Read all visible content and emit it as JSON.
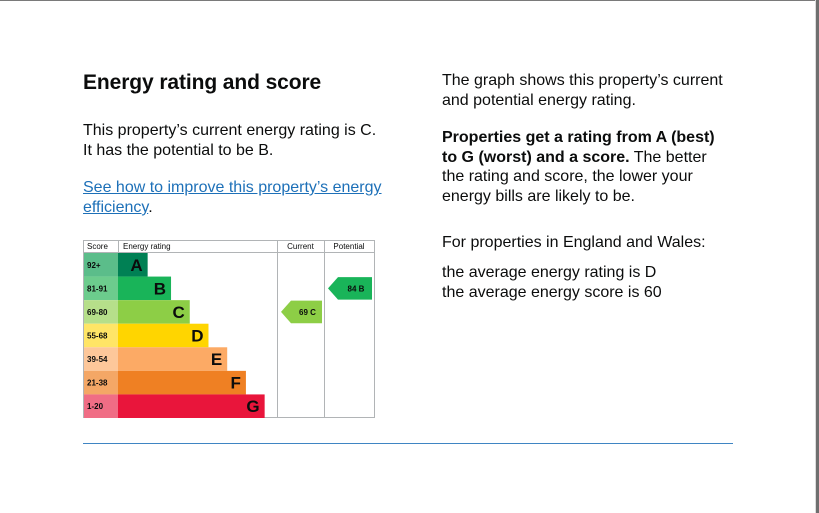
{
  "heading": "Energy rating and score",
  "summary": "This property’s current energy rating is C. It has the potential to be B.",
  "improve_link": "See how to improve this property’s energy efficiency",
  "improve_link_suffix": ".",
  "right": {
    "p1": "The graph shows this property’s current and potential energy rating.",
    "p2_bold": "Properties get a rating from A (best) to G (worst) and a score.",
    "p2_rest": " The better the rating and score, the lower your energy bills are likely to be.",
    "p3": "For properties in England and Wales:",
    "p4": "the average energy rating is D",
    "p5": "the average energy score is 60"
  },
  "chart_data": {
    "type": "table",
    "headers": {
      "score": "Score",
      "rating": "Energy rating",
      "current": "Current",
      "potential": "Potential"
    },
    "bands": [
      {
        "letter": "A",
        "range": "92+",
        "color": "#008054",
        "score_bg": "#5bbd8a",
        "width": 0.19
      },
      {
        "letter": "B",
        "range": "81-91",
        "color": "#19b459",
        "score_bg": "#6ccc8d",
        "width": 0.34
      },
      {
        "letter": "C",
        "range": "69-80",
        "color": "#8dce46",
        "score_bg": "#b6df8a",
        "width": 0.46
      },
      {
        "letter": "D",
        "range": "55-68",
        "color": "#ffd500",
        "score_bg": "#ffe566",
        "width": 0.58
      },
      {
        "letter": "E",
        "range": "39-54",
        "color": "#fcaa65",
        "score_bg": "#fdc79a",
        "width": 0.7
      },
      {
        "letter": "F",
        "range": "21-38",
        "color": "#ef8023",
        "score_bg": "#f4a766",
        "width": 0.82
      },
      {
        "letter": "G",
        "range": "1-20",
        "color": "#e9153b",
        "score_bg": "#f06d85",
        "width": 0.94
      }
    ],
    "current": {
      "score": 69,
      "letter": "C",
      "label": "69 C",
      "color": "#8dce46"
    },
    "potential": {
      "score": 84,
      "letter": "B",
      "label": "84 B",
      "color": "#19b459"
    }
  }
}
